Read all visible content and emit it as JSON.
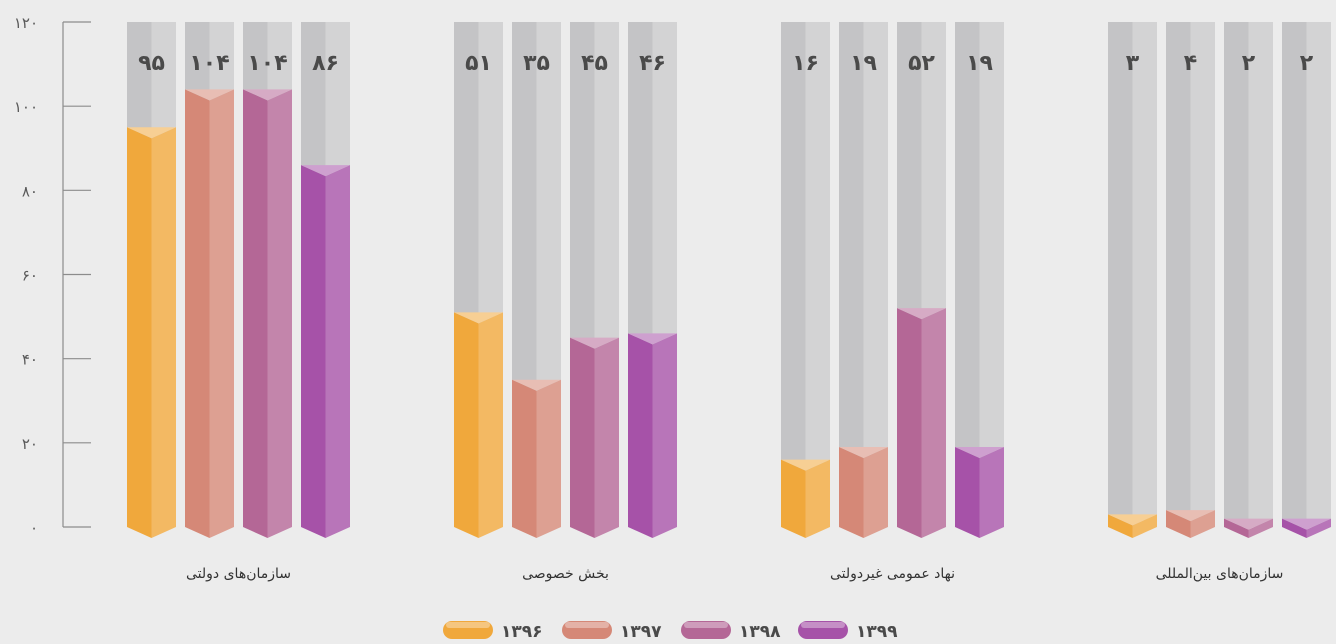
{
  "chart_data": {
    "type": "bar",
    "categories": [
      "سازمان‌های دولتی",
      "بخش خصوصی",
      "نهاد عمومی غیردولتی",
      "سازمان‌های بین‌المللی"
    ],
    "series": [
      {
        "name": "۱۳۹۶",
        "values": [
          95,
          51,
          16,
          3
        ],
        "labels": [
          "۹۵",
          "۵۱",
          "۱۶",
          "۳"
        ],
        "color": "#f0a83c"
      },
      {
        "name": "۱۳۹۷",
        "values": [
          104,
          35,
          19,
          4
        ],
        "labels": [
          "۱۰۴",
          "۳۵",
          "۱۹",
          "۴"
        ],
        "color": "#d58877"
      },
      {
        "name": "۱۳۹۸",
        "values": [
          104,
          45,
          52,
          2
        ],
        "labels": [
          "۱۰۴",
          "۴۵",
          "۵۲",
          "۲"
        ],
        "color": "#b46796"
      },
      {
        "name": "۱۳۹۹",
        "values": [
          86,
          46,
          19,
          2
        ],
        "labels": [
          "۸۶",
          "۴۶",
          "۱۹",
          "۲"
        ],
        "color": "#a652a8"
      }
    ],
    "ylim": [
      0,
      120
    ],
    "yticks": [
      0,
      20,
      40,
      60,
      80,
      100,
      120
    ],
    "ytick_labels": [
      "۰",
      "۲۰",
      "۴۰",
      "۶۰",
      "۸۰",
      "۱۰۰",
      "۱۲۰"
    ],
    "grid": false,
    "legend": "bottom-center",
    "background_bar_color": "#c4c4c6"
  }
}
